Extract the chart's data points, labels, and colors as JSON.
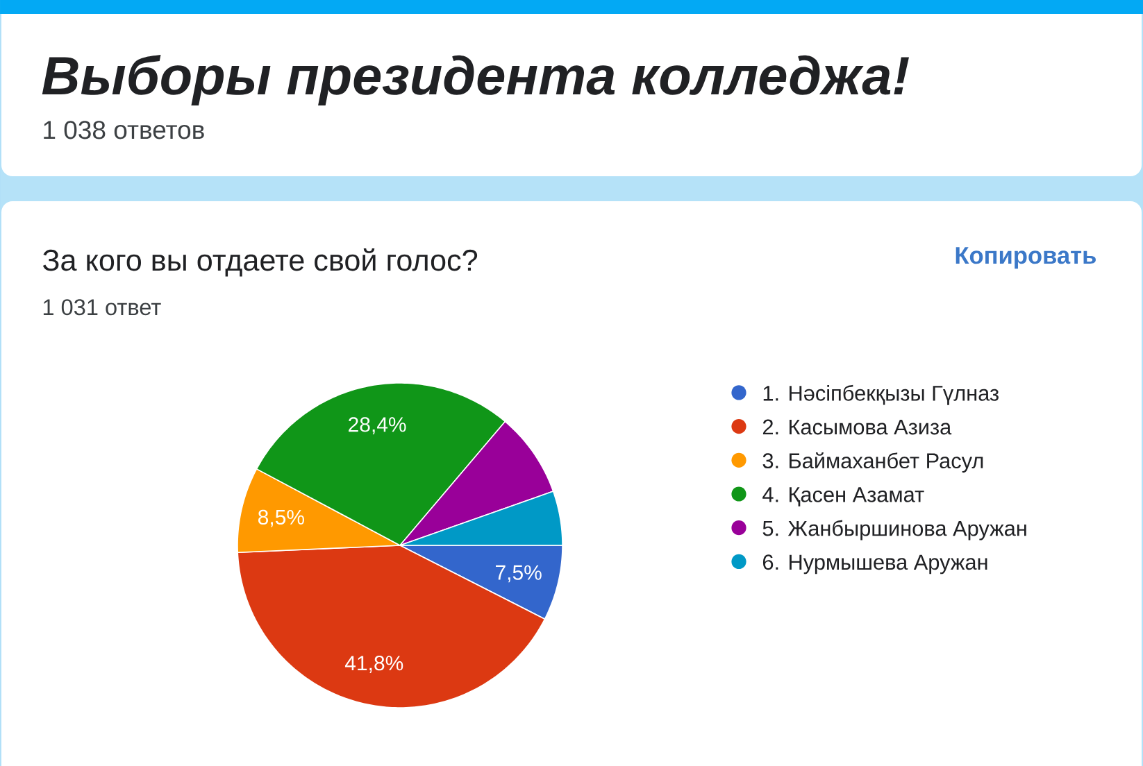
{
  "chart_data": {
    "type": "pie",
    "title": "Выборы президента колледжа!",
    "subtitle": "1 038 ответов",
    "annotations": [
      "За кого вы отдаете свой голос?",
      "1 031 ответ",
      "Копировать"
    ],
    "categories": [
      "1. Нәсіпбекқызы Гүлназ",
      "2. Касымова Азиза",
      "3. Баймаханбет Расул",
      "4. Қасен Азамат",
      "5. Жанбыршинова Аружан",
      "6. Нурмышева Аружан"
    ],
    "values": [
      7.5,
      41.8,
      8.5,
      28.4,
      8.4,
      5.4
    ],
    "colors": [
      "#3366cc",
      "#dc3912",
      "#ff9900",
      "#109618",
      "#990099",
      "#0099c6"
    ],
    "value_labels": [
      "7,5%",
      "41,8%",
      "8,5%",
      "28,4%",
      null,
      null
    ],
    "legend": "right"
  }
}
